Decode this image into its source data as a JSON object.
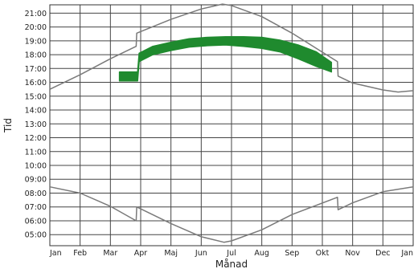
{
  "chart_data": {
    "type": "line",
    "title": "",
    "xlabel": "Månad",
    "ylabel": "Tid",
    "x_categories": [
      "Jan",
      "Feb",
      "Mar",
      "Apr",
      "Maj",
      "Jun",
      "Jul",
      "Aug",
      "Sep",
      "Okt",
      "Nov",
      "Dec",
      "Jan"
    ],
    "y_ticks": [
      "05:00",
      "06:00",
      "07:00",
      "08:00",
      "09:00",
      "10:00",
      "11:00",
      "12:00",
      "13:00",
      "14:00",
      "15:00",
      "16:00",
      "17:00",
      "18:00",
      "19:00",
      "20:00",
      "21:00"
    ],
    "ylim": [
      4.2,
      21.6
    ],
    "grid": true,
    "series": [
      {
        "role": "sunset",
        "line_color": "#7a7a7a",
        "x": [
          0,
          1,
          2,
          2.85,
          2.87,
          4,
          5,
          5.7,
          6,
          7,
          8,
          9.5,
          9.52,
          10,
          11,
          11.5,
          12
        ],
        "y": [
          15.5,
          16.55,
          17.7,
          18.6,
          19.55,
          20.55,
          21.3,
          21.65,
          21.55,
          20.75,
          19.55,
          17.5,
          16.45,
          15.95,
          15.45,
          15.3,
          15.4
        ]
      },
      {
        "role": "sunrise",
        "line_color": "#7a7a7a",
        "x": [
          0,
          1,
          2,
          2.85,
          2.87,
          4,
          5,
          5.75,
          6,
          7,
          8,
          9.5,
          9.52,
          10,
          11,
          12
        ],
        "y": [
          8.45,
          8.0,
          7.05,
          6.0,
          7.0,
          5.8,
          4.85,
          4.45,
          4.55,
          5.35,
          6.45,
          7.7,
          6.8,
          7.3,
          8.1,
          8.45
        ]
      },
      {
        "role": "highlight",
        "band_color": "#1f8a2e",
        "x": [
          2.3,
          2.9,
          2.95,
          3.4,
          4.0,
          4.6,
          5.2,
          5.8,
          6.4,
          7.0,
          7.6,
          8.2,
          8.8,
          9.3
        ],
        "low": [
          16.1,
          16.1,
          17.5,
          18.0,
          18.3,
          18.55,
          18.65,
          18.7,
          18.6,
          18.45,
          18.2,
          17.7,
          17.15,
          16.75
        ],
        "high": [
          16.75,
          16.75,
          18.1,
          18.6,
          18.9,
          19.15,
          19.25,
          19.3,
          19.3,
          19.25,
          19.05,
          18.7,
          18.2,
          17.45
        ]
      }
    ]
  }
}
